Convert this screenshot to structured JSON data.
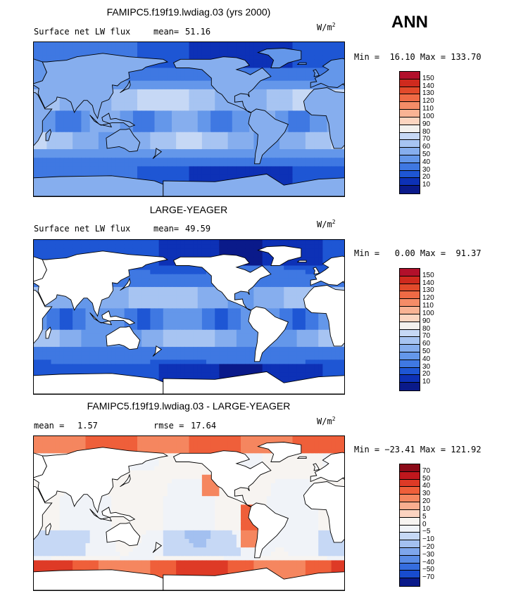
{
  "season": "ANN",
  "units_base": "W/m",
  "units_exp": "2",
  "panels": [
    {
      "title": "FAMIPC5.f19f19.lwdiag.03 (yrs 2000)",
      "left_label": "Surface net LW flux",
      "stat_label": "mean=",
      "stat_value": "51.16",
      "minmax": "Min =  16.10 Max = 133.70",
      "colorbar": {
        "levels": [
          "150",
          "140",
          "130",
          "120",
          "110",
          "100",
          "90",
          "80",
          "70",
          "60",
          "50",
          "40",
          "30",
          "20",
          "10"
        ],
        "colors": [
          "#b2102b",
          "#cf2a1e",
          "#e24a2b",
          "#ef6a45",
          "#f58c67",
          "#f9b394",
          "#fcd5c0",
          "#f3f1ee",
          "#c6d8f5",
          "#a7c4f2",
          "#86aeee",
          "#6497ea",
          "#3f78e2",
          "#1e56d4",
          "#0d31b6",
          "#0a1a8a"
        ]
      },
      "field": "control"
    },
    {
      "title": "LARGE-YEAGER",
      "left_label": "Surface net LW flux",
      "stat_label": "mean=",
      "stat_value": "49.59",
      "minmax": "Min =   0.00 Max =  91.37",
      "colorbar": {
        "levels": [
          "150",
          "140",
          "130",
          "120",
          "110",
          "100",
          "90",
          "80",
          "70",
          "60",
          "50",
          "40",
          "30",
          "20",
          "10"
        ],
        "colors": [
          "#b2102b",
          "#cf2a1e",
          "#e24a2b",
          "#ef6a45",
          "#f58c67",
          "#f9b394",
          "#fcd5c0",
          "#f3f1ee",
          "#c6d8f5",
          "#a7c4f2",
          "#86aeee",
          "#6497ea",
          "#3f78e2",
          "#1e56d4",
          "#0d31b6",
          "#0a1a8a"
        ]
      },
      "field": "obs"
    },
    {
      "title": "FAMIPC5.f19f19.lwdiag.03 - LARGE-YEAGER",
      "left_label": "mean =",
      "left_value": "1.57",
      "stat_label": "rmse =",
      "stat_value": "17.64",
      "minmax": "Min = −23.41 Max = 121.92",
      "colorbar": {
        "levels": [
          "70",
          "50",
          "40",
          "30",
          "20",
          "10",
          "5",
          "0",
          "−5",
          "−10",
          "−20",
          "−30",
          "−40",
          "−50",
          "−70"
        ],
        "colors": [
          "#8b0a18",
          "#c0171d",
          "#de3a26",
          "#ef5f3a",
          "#f5865f",
          "#f9ad8f",
          "#fcd3c0",
          "#f7f4f1",
          "#f0f3f8",
          "#c6d8f5",
          "#a3c0f0",
          "#7ea6ec",
          "#5a8ce6",
          "#356ddf",
          "#184ccf",
          "#0a1a8a"
        ]
      },
      "field": "diff"
    }
  ]
}
